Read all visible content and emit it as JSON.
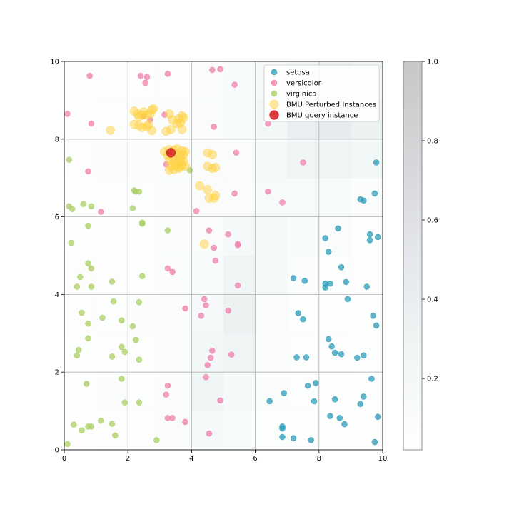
{
  "chart_data": {
    "type": "scatter",
    "title": "",
    "xlabel": "",
    "ylabel": "",
    "xlim": [
      0,
      10
    ],
    "ylim": [
      0,
      10
    ],
    "xticks": [
      "0",
      "2",
      "4",
      "6",
      "8",
      "10"
    ],
    "yticks": [
      "0",
      "2",
      "4",
      "6",
      "8",
      "10"
    ],
    "grid": true,
    "legend_position": "top-right",
    "colorbar": {
      "range": [
        0.02,
        1.0
      ],
      "ticks": [
        "0.2",
        "0.4",
        "0.6",
        "0.8",
        "1.0"
      ],
      "tick_values": [
        0.2,
        0.4,
        0.6,
        0.8,
        1.0
      ],
      "colormap": "bone_r"
    },
    "heatmap": {
      "grid_cells": 10,
      "rows_top_to_bottom": [
        [
          0.02,
          0.04,
          0.04,
          0.05,
          0.08,
          0.1,
          0.15,
          0.25,
          0.3,
          0.25
        ],
        [
          0.03,
          0.05,
          0.05,
          0.06,
          0.08,
          0.1,
          0.2,
          0.35,
          0.4,
          0.3
        ],
        [
          0.04,
          0.06,
          0.06,
          0.06,
          0.07,
          0.08,
          0.15,
          0.25,
          0.25,
          0.2
        ],
        [
          0.03,
          0.04,
          0.05,
          0.06,
          0.07,
          0.08,
          0.12,
          0.12,
          0.1,
          0.06
        ],
        [
          0.03,
          0.04,
          0.05,
          0.06,
          0.08,
          0.15,
          0.18,
          0.1,
          0.08,
          0.05
        ],
        [
          0.04,
          0.04,
          0.05,
          0.06,
          0.1,
          0.25,
          0.15,
          0.06,
          0.05,
          0.04
        ],
        [
          0.04,
          0.05,
          0.06,
          0.08,
          0.15,
          0.3,
          0.08,
          0.05,
          0.04,
          0.03
        ],
        [
          0.03,
          0.04,
          0.05,
          0.07,
          0.2,
          0.25,
          0.06,
          0.05,
          0.04,
          0.03
        ],
        [
          0.03,
          0.06,
          0.05,
          0.08,
          0.25,
          0.15,
          0.06,
          0.05,
          0.04,
          0.03
        ],
        [
          0.02,
          0.04,
          0.05,
          0.07,
          0.15,
          0.1,
          0.05,
          0.04,
          0.03,
          0.02
        ]
      ]
    },
    "series": [
      {
        "name": "setosa",
        "color": "#2a9bb7",
        "points": [
          [
            9.8,
            7.4
          ],
          [
            9.3,
            6.45
          ],
          [
            9.4,
            6.42
          ],
          [
            9.75,
            6.6
          ],
          [
            8.2,
            5.45
          ],
          [
            8.3,
            5.1
          ],
          [
            8.6,
            5.7
          ],
          [
            9.6,
            5.55
          ],
          [
            9.6,
            5.4
          ],
          [
            9.85,
            5.48
          ],
          [
            7.2,
            4.42
          ],
          [
            7.55,
            4.35
          ],
          [
            8.7,
            4.7
          ],
          [
            8.2,
            4.28
          ],
          [
            8.35,
            4.28
          ],
          [
            8.2,
            4.18
          ],
          [
            8.85,
            4.32
          ],
          [
            9.5,
            4.2
          ],
          [
            8.9,
            3.88
          ],
          [
            7.35,
            3.52
          ],
          [
            7.5,
            3.36
          ],
          [
            9.7,
            3.45
          ],
          [
            9.8,
            3.2
          ],
          [
            8.3,
            2.85
          ],
          [
            8.4,
            2.66
          ],
          [
            8.5,
            2.5
          ],
          [
            8.7,
            2.46
          ],
          [
            9.4,
            2.43
          ],
          [
            7.3,
            2.38
          ],
          [
            7.6,
            2.38
          ],
          [
            9.2,
            2.37
          ],
          [
            9.65,
            1.83
          ],
          [
            7.9,
            1.72
          ],
          [
            7.65,
            1.65
          ],
          [
            6.9,
            1.46
          ],
          [
            6.45,
            1.25
          ],
          [
            7.85,
            1.25
          ],
          [
            8.5,
            1.3
          ],
          [
            9.3,
            1.18
          ],
          [
            9.4,
            1.37
          ],
          [
            8.35,
            0.87
          ],
          [
            8.65,
            0.82
          ],
          [
            8.8,
            0.66
          ],
          [
            9.85,
            0.85
          ],
          [
            6.85,
            0.6
          ],
          [
            6.85,
            0.55
          ],
          [
            7.2,
            0.3
          ],
          [
            6.85,
            0.33
          ],
          [
            7.75,
            0.25
          ],
          [
            9.75,
            0.2
          ]
        ]
      },
      {
        "name": "versicolor",
        "color": "#f07fab",
        "points": [
          [
            0.8,
            9.63
          ],
          [
            2.4,
            9.63
          ],
          [
            2.6,
            9.6
          ],
          [
            3.25,
            9.68
          ],
          [
            4.65,
            9.78
          ],
          [
            4.9,
            9.8
          ],
          [
            5.35,
            9.4
          ],
          [
            2.55,
            9.45
          ],
          [
            0.1,
            8.65
          ],
          [
            0.85,
            8.4
          ],
          [
            2.5,
            8.6
          ],
          [
            2.7,
            8.5
          ],
          [
            3.15,
            8.63
          ],
          [
            4.7,
            8.32
          ],
          [
            6.4,
            8.4
          ],
          [
            7.5,
            7.4
          ],
          [
            5.4,
            7.65
          ],
          [
            3.2,
            7.35
          ],
          [
            0.75,
            7.17
          ],
          [
            5.35,
            6.6
          ],
          [
            6.4,
            6.65
          ],
          [
            6.85,
            6.37
          ],
          [
            1.15,
            6.13
          ],
          [
            4.15,
            6.15
          ],
          [
            4.55,
            5.65
          ],
          [
            5.15,
            5.55
          ],
          [
            4.7,
            5.2
          ],
          [
            5.45,
            5.3
          ],
          [
            5.45,
            5.27
          ],
          [
            4.75,
            4.87
          ],
          [
            3.25,
            4.67
          ],
          [
            3.4,
            4.58
          ],
          [
            5.45,
            4.23
          ],
          [
            4.4,
            3.88
          ],
          [
            4.45,
            3.72
          ],
          [
            3.8,
            3.64
          ],
          [
            5.15,
            3.58
          ],
          [
            4.3,
            3.45
          ],
          [
            4.65,
            2.55
          ],
          [
            4.6,
            2.37
          ],
          [
            5.25,
            2.45
          ],
          [
            4.5,
            2.18
          ],
          [
            4.45,
            1.87
          ],
          [
            3.25,
            1.65
          ],
          [
            3.2,
            1.42
          ],
          [
            4.9,
            1.27
          ],
          [
            3.25,
            0.82
          ],
          [
            3.4,
            0.82
          ],
          [
            3.8,
            0.72
          ],
          [
            4.55,
            0.42
          ]
        ]
      },
      {
        "name": "virginica",
        "color": "#a9cf61",
        "points": [
          [
            0.15,
            7.47
          ],
          [
            3.95,
            7.2
          ],
          [
            2.2,
            6.68
          ],
          [
            2.35,
            6.65
          ],
          [
            2.25,
            6.65
          ],
          [
            0.15,
            6.27
          ],
          [
            0.25,
            6.2
          ],
          [
            0.6,
            6.33
          ],
          [
            0.85,
            6.27
          ],
          [
            2.15,
            6.22
          ],
          [
            2.45,
            5.85
          ],
          [
            2.45,
            5.82
          ],
          [
            0.75,
            5.77
          ],
          [
            3.25,
            5.65
          ],
          [
            0.22,
            5.33
          ],
          [
            0.75,
            4.8
          ],
          [
            0.85,
            4.67
          ],
          [
            0.5,
            4.45
          ],
          [
            2.45,
            4.47
          ],
          [
            1.5,
            4.33
          ],
          [
            0.4,
            4.2
          ],
          [
            0.85,
            4.2
          ],
          [
            1.55,
            3.82
          ],
          [
            2.35,
            3.8
          ],
          [
            0.55,
            3.53
          ],
          [
            1.2,
            3.4
          ],
          [
            1.8,
            3.33
          ],
          [
            0.75,
            3.25
          ],
          [
            2.15,
            3.18
          ],
          [
            0.75,
            2.87
          ],
          [
            2.25,
            2.83
          ],
          [
            1.8,
            2.65
          ],
          [
            0.45,
            2.57
          ],
          [
            1.9,
            2.52
          ],
          [
            0.4,
            2.43
          ],
          [
            1.5,
            2.4
          ],
          [
            2.35,
            2.32
          ],
          [
            1.8,
            1.83
          ],
          [
            0.7,
            1.7
          ],
          [
            1.9,
            1.22
          ],
          [
            2.35,
            1.22
          ],
          [
            1.15,
            0.75
          ],
          [
            0.3,
            0.65
          ],
          [
            0.75,
            0.6
          ],
          [
            0.85,
            0.6
          ],
          [
            1.5,
            0.67
          ],
          [
            0.55,
            0.5
          ],
          [
            1.6,
            0.37
          ],
          [
            2.9,
            0.25
          ],
          [
            0.1,
            0.15
          ]
        ]
      },
      {
        "name": "BMU Perturbed Instances",
        "color": "#ffd23f",
        "points": [
          [
            2.2,
            8.72
          ],
          [
            2.3,
            8.65
          ],
          [
            2.35,
            8.58
          ],
          [
            2.45,
            8.62
          ],
          [
            2.5,
            8.7
          ],
          [
            2.6,
            8.62
          ],
          [
            2.7,
            8.65
          ],
          [
            2.75,
            8.75
          ],
          [
            2.8,
            8.78
          ],
          [
            3.3,
            8.65
          ],
          [
            3.6,
            8.52
          ],
          [
            3.7,
            8.6
          ],
          [
            3.75,
            8.55
          ],
          [
            3.65,
            8.42
          ],
          [
            3.4,
            8.5
          ],
          [
            3.55,
            8.4
          ],
          [
            2.2,
            8.38
          ],
          [
            2.35,
            8.35
          ],
          [
            2.45,
            8.3
          ],
          [
            2.6,
            8.32
          ],
          [
            2.65,
            8.38
          ],
          [
            2.75,
            8.22
          ],
          [
            3.2,
            8.2
          ],
          [
            3.35,
            8.25
          ],
          [
            3.7,
            8.25
          ],
          [
            1.45,
            8.23
          ],
          [
            3.15,
            7.68
          ],
          [
            3.3,
            7.73
          ],
          [
            3.45,
            7.72
          ],
          [
            3.55,
            7.75
          ],
          [
            3.7,
            7.7
          ],
          [
            3.8,
            7.68
          ],
          [
            3.25,
            7.58
          ],
          [
            3.4,
            7.55
          ],
          [
            3.55,
            7.62
          ],
          [
            3.65,
            7.55
          ],
          [
            3.75,
            7.6
          ],
          [
            3.3,
            7.45
          ],
          [
            3.45,
            7.4
          ],
          [
            3.55,
            7.48
          ],
          [
            3.65,
            7.45
          ],
          [
            3.75,
            7.42
          ],
          [
            3.35,
            7.3
          ],
          [
            3.5,
            7.33
          ],
          [
            3.6,
            7.28
          ],
          [
            3.7,
            7.32
          ],
          [
            3.8,
            7.3
          ],
          [
            3.3,
            7.2
          ],
          [
            3.45,
            7.22
          ],
          [
            3.6,
            7.25
          ],
          [
            4.5,
            7.65
          ],
          [
            4.65,
            7.6
          ],
          [
            4.5,
            7.3
          ],
          [
            4.65,
            7.25
          ],
          [
            4.75,
            7.27
          ],
          [
            4.25,
            6.8
          ],
          [
            4.5,
            6.7
          ],
          [
            4.55,
            6.48
          ],
          [
            4.7,
            6.48
          ],
          [
            4.75,
            6.55
          ],
          [
            4.4,
            5.3
          ]
        ]
      },
      {
        "name": "BMU query instance",
        "color": "#d62728",
        "points": [
          [
            3.35,
            7.65
          ]
        ]
      }
    ]
  }
}
